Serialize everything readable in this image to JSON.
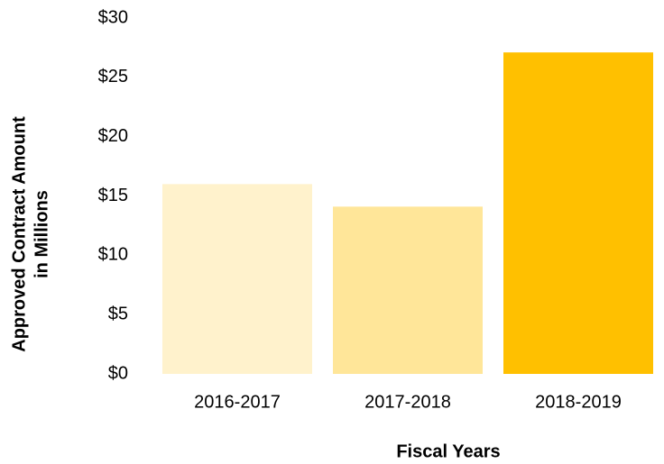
{
  "chart_data": {
    "type": "bar",
    "x_label": "Fiscal Years",
    "y_label": [
      "Approved Contract Amount",
      "in Millions"
    ],
    "categories": [
      "2016-2017",
      "2017-2018",
      "2018-2019"
    ],
    "values": [
      16,
      14.1,
      27.1
    ],
    "colors": [
      "#fff2cc",
      "#ffe699",
      "#ffc000"
    ],
    "ylim": [
      0,
      30
    ],
    "yticks": [
      {
        "value": 0,
        "label": "$0"
      },
      {
        "value": 5,
        "label": "$5"
      },
      {
        "value": 10,
        "label": "$10"
      },
      {
        "value": 15,
        "label": "$15"
      },
      {
        "value": 20,
        "label": "$20"
      },
      {
        "value": 25,
        "label": "$25"
      },
      {
        "value": 30,
        "label": "$30"
      }
    ],
    "grid": false
  }
}
